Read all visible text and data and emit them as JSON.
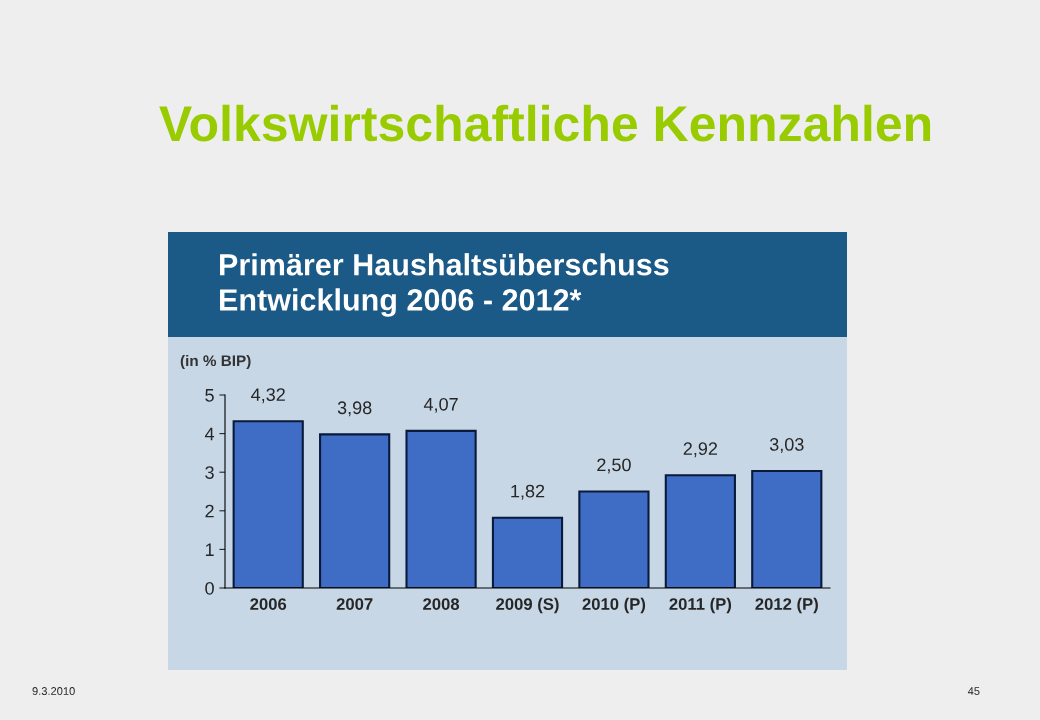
{
  "chart_data": {
    "type": "bar",
    "title": "Volkswirtschaftliche Kennzahlen",
    "subtitle": "Primärer Haushaltsüberschuss\nEntwicklung 2006 - 2012*",
    "ylabel": "(in % BIP)",
    "categories": [
      "2006",
      "2007",
      "2008",
      "2009 (S)",
      "2010 (P)",
      "2011 (P)",
      "2012 (P)"
    ],
    "values": [
      4.32,
      3.98,
      4.07,
      1.82,
      2.5,
      2.92,
      3.03
    ],
    "value_labels": [
      "4,32",
      "3,98",
      "4,07",
      "1,82",
      "2,50",
      "2,92",
      "3,03"
    ],
    "color": "#3f6cc4",
    "ylim": [
      0,
      5
    ],
    "yticks": [
      0,
      1,
      2,
      3,
      4,
      5
    ],
    "grid": false,
    "annotations": [
      "9.3.2010",
      "45"
    ]
  }
}
